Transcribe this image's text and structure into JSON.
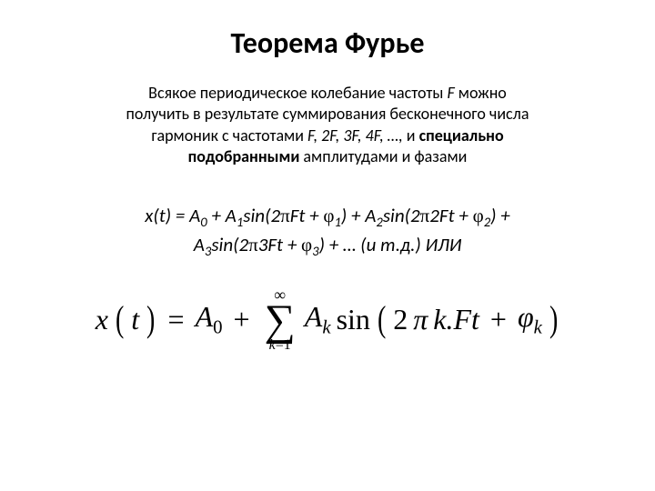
{
  "colors": {
    "bg": "#ffffff",
    "text": "#000000"
  },
  "title": "Теорема Фурье",
  "body": {
    "line1": "Всякое периодическое колебание частоты ",
    "F": "F",
    "line1b": " можно",
    "line2": "получить в результате суммирования бесконечного числа",
    "line3a": "гармоник с частотами ",
    "freqs": "F, 2F, 3F, 4F, …, ",
    "line3b": "и ",
    "specially": "специально",
    "line4a": "подобранными",
    "line4b": " амплитудами и фазами"
  },
  "formula1": {
    "part1_lhs": "x(t) = A",
    "sub0": "0",
    "part1_plus": " + A",
    "sub1": "1",
    "sin1a": "sin(2",
    "pi": "π",
    "sin1b": "Ft + ",
    "phi": "φ",
    "close": ") + A",
    "sub2": "2",
    "sin2b": "2Ft + ",
    "close2": ") +",
    "A3": "A",
    "sub3": "3",
    "sin3b": "3Ft + ",
    "tail1": ") + … (",
    "itd": "и т.д.",
    "tail2": ")  ИЛИ"
  },
  "formula2": {
    "lhs_x": "x",
    "lhs_t": "t",
    "eq": "=",
    "A": "A",
    "sub0": "0",
    "plus": "+",
    "sum_top": "∞",
    "sum_bot_k": "k",
    "sum_bot_eq": "=1",
    "subk": "k",
    "sin": "sin",
    "two": "2",
    "pi": "π",
    "dot": ".",
    "kFt": "k.Ft",
    "phi": "φ"
  }
}
